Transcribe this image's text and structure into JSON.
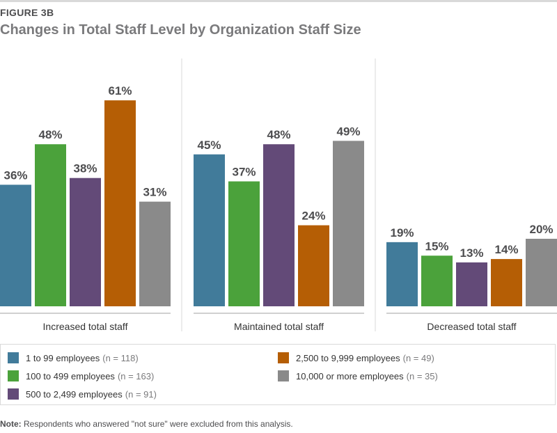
{
  "header": {
    "figure_label": "FIGURE 3B",
    "title": "Changes in Total Staff Level by Organization Staff Size"
  },
  "chart_data": {
    "type": "bar",
    "title": "Changes in Total Staff Level by Organization Staff Size",
    "categories": [
      "Increased total staff",
      "Maintained total staff",
      "Decreased total staff"
    ],
    "series": [
      {
        "name": "1 to 99 employees",
        "n": "(n = 118)",
        "color": "#417b9a",
        "values": [
          36,
          45,
          19
        ]
      },
      {
        "name": "100 to 499 employees",
        "n": "(n = 163)",
        "color": "#4ba23b",
        "values": [
          48,
          37,
          15
        ]
      },
      {
        "name": "500 to 2,499 employees",
        "n": "(n = 91)",
        "color": "#634a78",
        "values": [
          38,
          48,
          13
        ]
      },
      {
        "name": "2,500 to 9,999 employees",
        "n": "(n = 49)",
        "color": "#b55e05",
        "values": [
          61,
          24,
          14
        ]
      },
      {
        "name": "10,000 or more employees",
        "n": "(n = 35)",
        "color": "#8a8a8a",
        "values": [
          31,
          49,
          20
        ]
      }
    ],
    "value_suffix": "%",
    "ylim": [
      0,
      100
    ],
    "legend": "bottom"
  },
  "note": {
    "label": "Note:",
    "text": " Respondents who answered \"not sure\" were excluded from this analysis."
  }
}
